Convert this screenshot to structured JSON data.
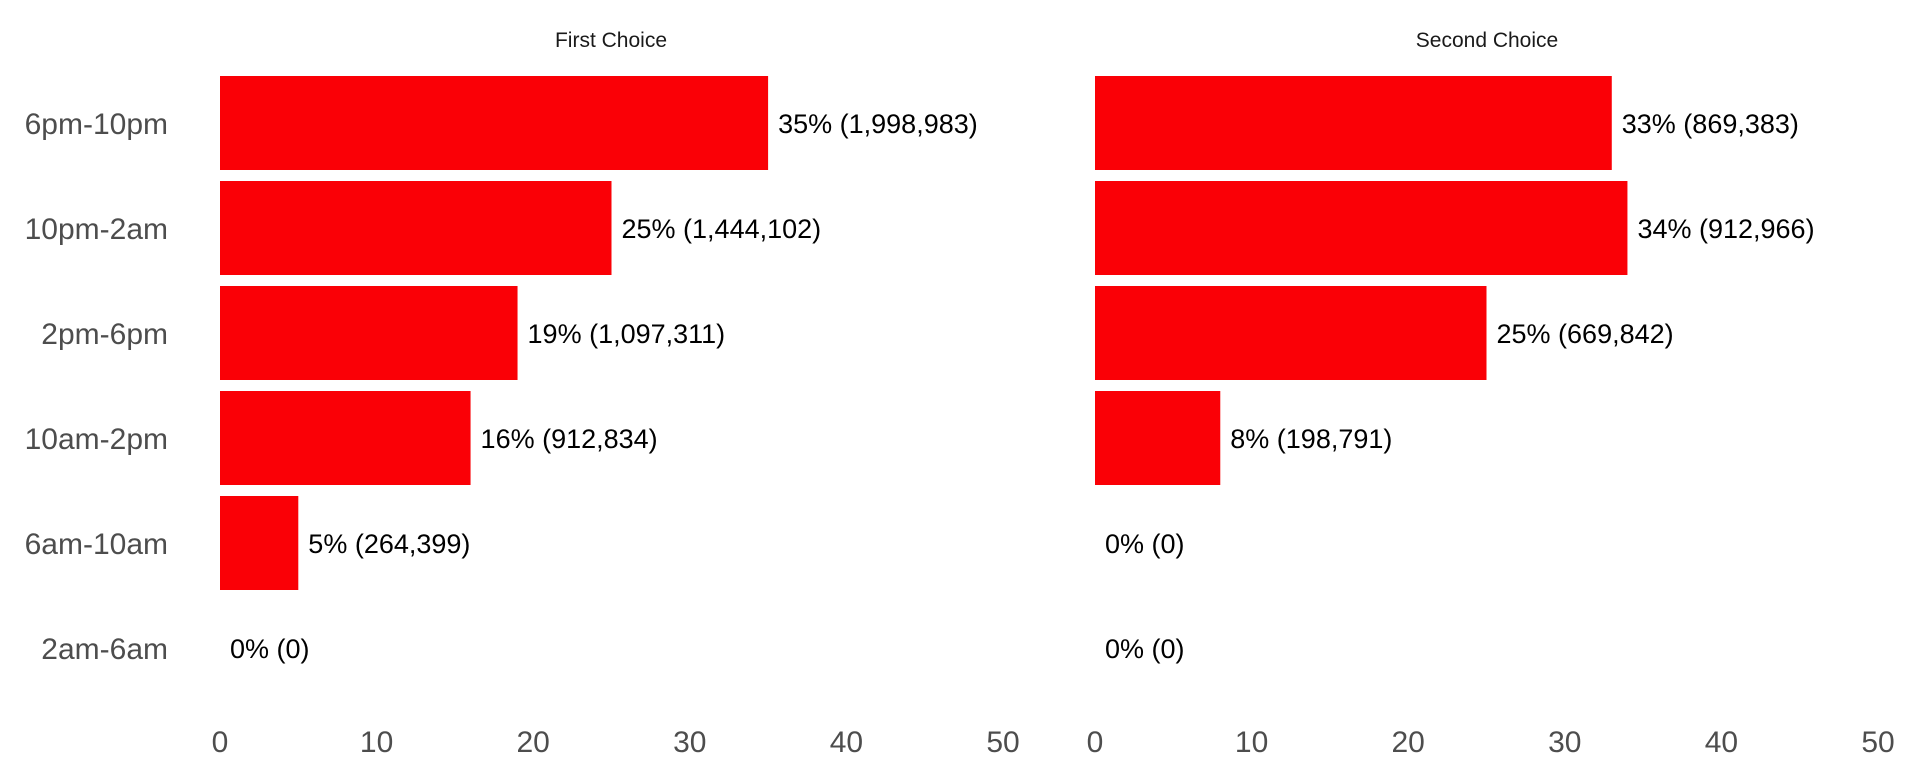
{
  "chart_data": [
    {
      "type": "bar",
      "orientation": "horizontal",
      "title": "First Choice",
      "categories": [
        "6pm-10pm",
        "10pm-2am",
        "2pm-6pm",
        "10am-2pm",
        "6am-10am",
        "2am-6am"
      ],
      "values": [
        35,
        25,
        19,
        16,
        5,
        0
      ],
      "labels": [
        "35% (1,998,983)",
        "25% (1,444,102)",
        "19% (1,097,311)",
        "16% (912,834)",
        "5% (264,399)",
        "0% (0)"
      ],
      "xlim": [
        0,
        50
      ],
      "xticks": [
        0,
        10,
        20,
        30,
        40,
        50
      ],
      "grid": false
    },
    {
      "type": "bar",
      "orientation": "horizontal",
      "title": "Second Choice",
      "categories": [
        "6pm-10pm",
        "10pm-2am",
        "2pm-6pm",
        "10am-2pm",
        "6am-10am",
        "2am-6am"
      ],
      "values": [
        33,
        34,
        25,
        8,
        0,
        0
      ],
      "labels": [
        "33% (869,383)",
        "34% (912,966)",
        "25% (669,842)",
        "8% (198,791)",
        "0% (0)",
        "0% (0)"
      ],
      "xlim": [
        0,
        50
      ],
      "xticks": [
        0,
        10,
        20,
        30,
        40,
        50
      ],
      "grid": false
    }
  ],
  "colors": {
    "bar": "#fa0006",
    "axis_text": "#4d4d4d",
    "label_text": "#000000"
  }
}
